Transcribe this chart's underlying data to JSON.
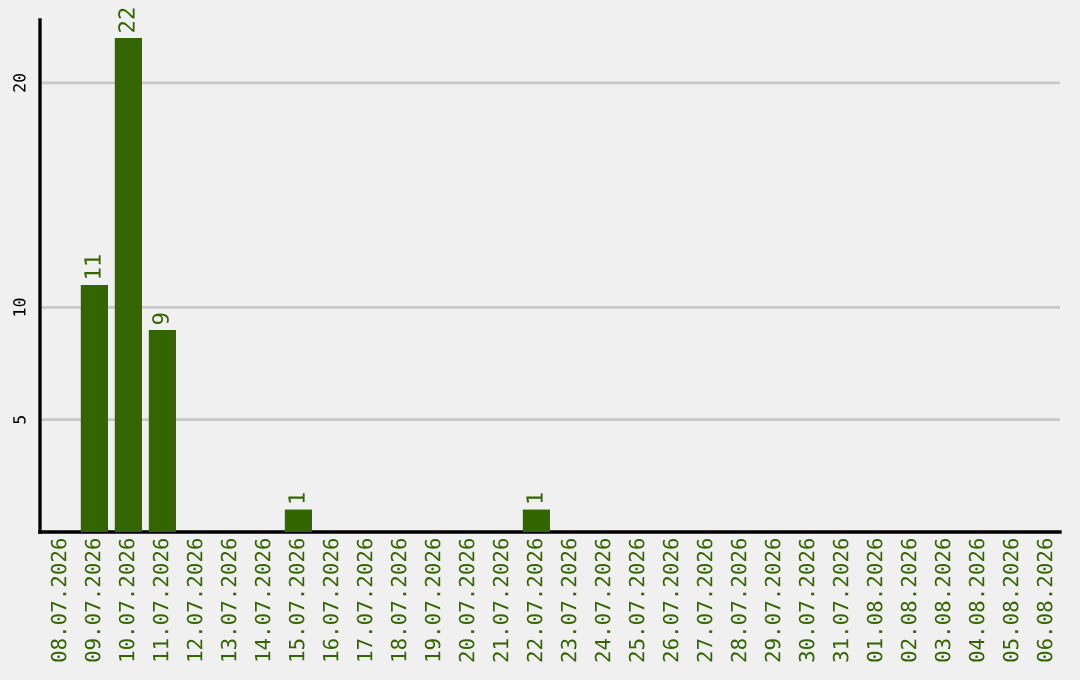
{
  "chart_data": {
    "type": "bar",
    "categories": [
      "08.07.2026",
      "09.07.2026",
      "10.07.2026",
      "11.07.2026",
      "12.07.2026",
      "13.07.2026",
      "14.07.2026",
      "15.07.2026",
      "16.07.2026",
      "17.07.2026",
      "18.07.2026",
      "19.07.2026",
      "20.07.2026",
      "21.07.2026",
      "22.07.2026",
      "23.07.2026",
      "24.07.2026",
      "25.07.2026",
      "26.07.2026",
      "27.07.2026",
      "28.07.2026",
      "29.07.2026",
      "30.07.2026",
      "31.07.2026",
      "01.08.2026",
      "02.08.2026",
      "03.08.2026",
      "04.08.2026",
      "05.08.2026",
      "06.08.2026"
    ],
    "values": [
      0,
      11,
      22,
      9,
      0,
      0,
      0,
      1,
      0,
      0,
      0,
      0,
      0,
      0,
      1,
      0,
      0,
      0,
      0,
      0,
      0,
      0,
      0,
      0,
      0,
      0,
      0,
      0,
      0,
      0
    ],
    "value_labels": [
      null,
      "11",
      "22",
      "9",
      null,
      null,
      null,
      "1",
      null,
      null,
      null,
      null,
      null,
      null,
      "1",
      null,
      null,
      null,
      null,
      null,
      null,
      null,
      null,
      null,
      null,
      null,
      null,
      null,
      null,
      null
    ],
    "color": "#336600",
    "ylim": [
      0,
      22.8
    ],
    "yticks": [
      5,
      10,
      20
    ],
    "grid": "y"
  }
}
